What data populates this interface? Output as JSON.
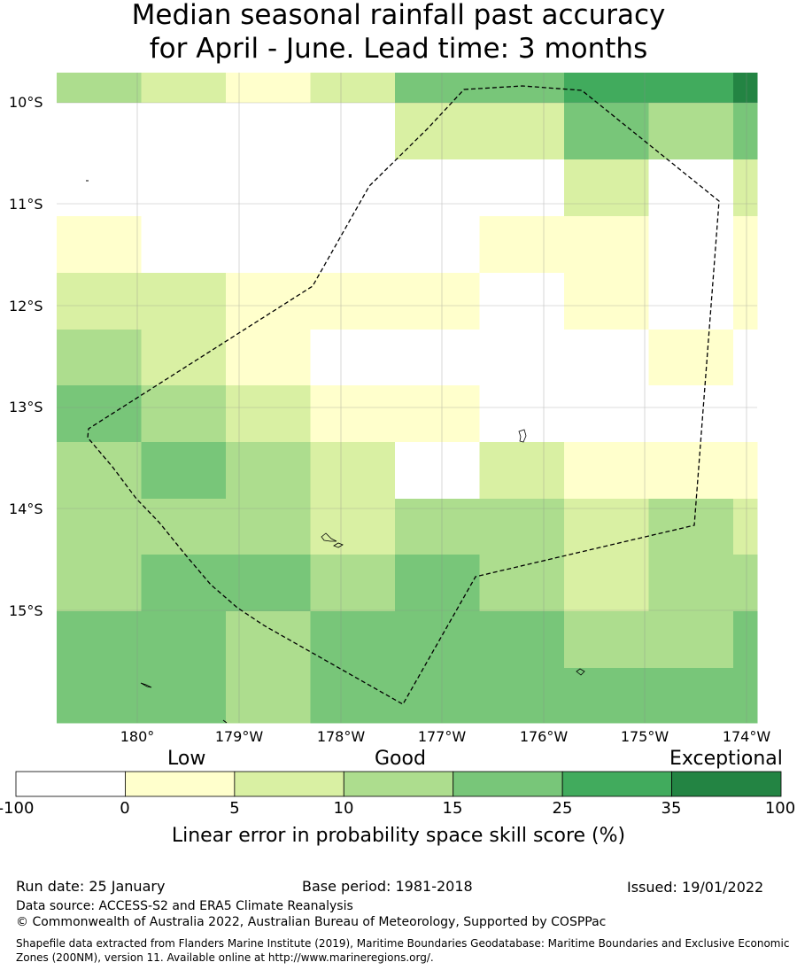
{
  "title": {
    "line1": "Median seasonal rainfall past accuracy",
    "line2": "for April - June. Lead time: 3 months"
  },
  "map": {
    "latitude_labels": [
      "10°S",
      "11°S",
      "12°S",
      "13°S",
      "14°S",
      "15°S"
    ],
    "longitude_labels": [
      "180°",
      "179°W",
      "178°W",
      "177°W",
      "176°W",
      "175°W",
      "174°W"
    ],
    "skill_grid_category_index": [
      [
        3,
        2,
        1,
        2,
        4,
        4,
        5,
        5,
        6
      ],
      [
        0,
        0,
        0,
        0,
        2,
        2,
        4,
        3,
        4
      ],
      [
        0,
        0,
        0,
        0,
        0,
        0,
        2,
        0,
        2
      ],
      [
        1,
        0,
        0,
        0,
        0,
        1,
        1,
        0,
        1
      ],
      [
        2,
        2,
        1,
        1,
        1,
        0,
        1,
        0,
        1
      ],
      [
        3,
        2,
        1,
        0,
        0,
        0,
        0,
        1,
        0
      ],
      [
        4,
        3,
        2,
        1,
        1,
        0,
        0,
        0,
        0
      ],
      [
        3,
        4,
        3,
        2,
        0,
        2,
        1,
        1,
        1
      ],
      [
        3,
        3,
        3,
        2,
        3,
        3,
        2,
        3,
        2
      ],
      [
        3,
        4,
        4,
        3,
        4,
        3,
        2,
        3,
        3
      ],
      [
        4,
        4,
        3,
        4,
        4,
        4,
        3,
        3,
        4
      ],
      [
        4,
        4,
        3,
        4,
        4,
        4,
        4,
        4,
        4
      ]
    ]
  },
  "colorbar": {
    "category_labels": [
      "Low",
      "Good",
      "Exceptional"
    ],
    "tick_labels": [
      "-100",
      "0",
      "5",
      "10",
      "15",
      "25",
      "35",
      "100"
    ],
    "colors": [
      "#ffffff",
      "#ffffcc",
      "#d9f0a3",
      "#addd8e",
      "#78c679",
      "#41ab5d",
      "#238443"
    ],
    "title": "Linear error in probability space skill score (%)"
  },
  "footer": {
    "run_date": "Run date: 25 January",
    "base_period": "Base period: 1981-2018",
    "issued": "Issued: 19/01/2022",
    "data_source": "Data source: ACCESS-S2 and ERA5 Climate Reanalysis",
    "copyright": "© Commonwealth of Australia 2022, Australian Bureau of Meteorology, Supported by COSPPac",
    "shapefile_note": "Shapefile data extracted from Flanders Marine Institute (2019), Maritime Boundaries Geodatabase: Maritime Boundaries and Exclusive Economic Zones (200NM), version 11. Available online at http://www.marineregions.org/."
  }
}
